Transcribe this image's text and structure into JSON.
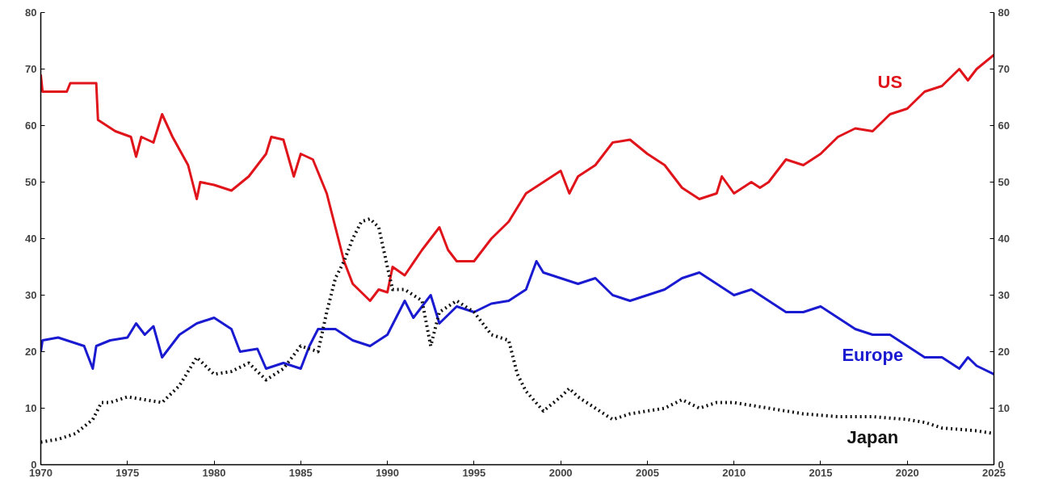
{
  "chart_data": {
    "type": "line",
    "xlim": [
      1970,
      2025
    ],
    "xticks": [
      1970,
      1975,
      1980,
      1985,
      1990,
      1995,
      2000,
      2005,
      2010,
      2015,
      2020,
      2025
    ],
    "ylim": [
      0,
      80
    ],
    "yticks": [
      0,
      10,
      20,
      30,
      40,
      50,
      60,
      70,
      80
    ],
    "y2lim": [
      0,
      80
    ],
    "y2ticks": [
      0,
      10,
      20,
      30,
      40,
      50,
      60,
      70,
      80
    ],
    "grid": false,
    "marker": "none",
    "series": [
      {
        "name": "US",
        "color": "#e0141b",
        "line_style": "solid",
        "x": [
          1970,
          1970.1,
          1971.5,
          1971.7,
          1973.2,
          1973.3,
          1974.3,
          1975.2,
          1975.5,
          1975.8,
          1976.5,
          1977,
          1977.6,
          1978.5,
          1979,
          1979.2,
          1980,
          1981,
          1982,
          1983,
          1983.3,
          1984,
          1984.6,
          1985,
          1985.7,
          1986.5,
          1987,
          1987.5,
          1988,
          1988.5,
          1989,
          1989.5,
          1990,
          1990.3,
          1991,
          1992,
          1993,
          1993.5,
          1994,
          1995,
          1996,
          1997,
          1998,
          1999,
          2000,
          2000.5,
          2001,
          2002,
          2003,
          2004,
          2005,
          2006,
          2007,
          2008,
          2009,
          2009.3,
          2010,
          2011,
          2011.5,
          2012,
          2013,
          2014,
          2015,
          2016,
          2017,
          2018,
          2019,
          2020,
          2021,
          2022,
          2023,
          2023.5,
          2024,
          2025
        ],
        "values": [
          69,
          66,
          66,
          67.5,
          67.5,
          61,
          59,
          58,
          54.5,
          58,
          57,
          62,
          58,
          53,
          47,
          50,
          49.5,
          48.5,
          51,
          55,
          58,
          57.5,
          51,
          55,
          54,
          48,
          42,
          36,
          32,
          30.5,
          29,
          31,
          30.5,
          35,
          33.5,
          38,
          42,
          38,
          36,
          36,
          40,
          43,
          48,
          50,
          52,
          48,
          51,
          53,
          57,
          57.5,
          55,
          53,
          49,
          47,
          48,
          51,
          48,
          50,
          49,
          50,
          54,
          53,
          55,
          58,
          59.5,
          59,
          62,
          63,
          66,
          67,
          70,
          68,
          70,
          72.5
        ]
      },
      {
        "name": "Europe",
        "color": "#1a1ad0",
        "line_style": "solid",
        "x": [
          1970,
          1970.1,
          1971,
          1972.5,
          1973,
          1973.2,
          1974,
          1975,
          1975.5,
          1976,
          1976.5,
          1977,
          1978,
          1979,
          1980,
          1981,
          1981.5,
          1982.5,
          1983,
          1984,
          1985,
          1985.5,
          1986,
          1987,
          1988,
          1989,
          1990,
          1991,
          1991.5,
          1992.5,
          1993,
          1994,
          1995,
          1996,
          1997,
          1998,
          1998.6,
          1999,
          2000,
          2001,
          2002,
          2003,
          2004,
          2005,
          2006,
          2007,
          2008,
          2009,
          2010,
          2011,
          2012,
          2013,
          2014,
          2015,
          2016,
          2017,
          2018,
          2019,
          2020,
          2021,
          2022,
          2023,
          2023.5,
          2024,
          2025
        ],
        "values": [
          20,
          22,
          22.5,
          21,
          17,
          21,
          22,
          22.5,
          25,
          23,
          24.5,
          19,
          23,
          25,
          26,
          24,
          20,
          20.5,
          17,
          18,
          17,
          21,
          24,
          24,
          22,
          21,
          23,
          29,
          26,
          30,
          25,
          28,
          27,
          28.5,
          29,
          31,
          36,
          34,
          33,
          32,
          33,
          30,
          29,
          30,
          31,
          33,
          34,
          32,
          30,
          31,
          29,
          27,
          27,
          28,
          26,
          24,
          23,
          23,
          21,
          19,
          19,
          17,
          19,
          17.5,
          16
        ]
      },
      {
        "name": "Japan",
        "color": "#111111",
        "line_style": "dotted",
        "x": [
          1970,
          1971,
          1972,
          1973,
          1973.5,
          1974,
          1975,
          1976,
          1977,
          1978,
          1979,
          1980,
          1981,
          1982,
          1983,
          1984,
          1985,
          1986,
          1986.5,
          1987,
          1987.5,
          1988,
          1988.5,
          1989,
          1989.5,
          1990,
          1990.3,
          1991,
          1992,
          1992.5,
          1993,
          1994,
          1995,
          1996,
          1997,
          1997.5,
          1998,
          1999,
          2000,
          2000.5,
          2001,
          2002,
          2003,
          2004,
          2005,
          2006,
          2007,
          2008,
          2009,
          2010,
          2012,
          2014,
          2016,
          2018,
          2020,
          2021,
          2022,
          2024,
          2025
        ],
        "values": [
          4,
          4.5,
          5.5,
          8,
          11,
          11,
          12,
          11.5,
          11,
          14,
          19,
          16,
          16.5,
          18,
          15,
          17,
          21,
          20,
          27,
          33,
          36,
          40,
          43,
          43.5,
          42,
          35,
          31,
          31,
          29,
          21,
          27,
          29,
          27,
          23,
          22,
          16,
          13,
          9.5,
          12,
          13.5,
          12,
          10,
          8,
          9,
          9.5,
          10,
          11.5,
          10,
          11,
          11,
          10,
          9,
          8.5,
          8.5,
          8,
          7.5,
          6.5,
          6,
          5.5
        ]
      }
    ]
  }
}
